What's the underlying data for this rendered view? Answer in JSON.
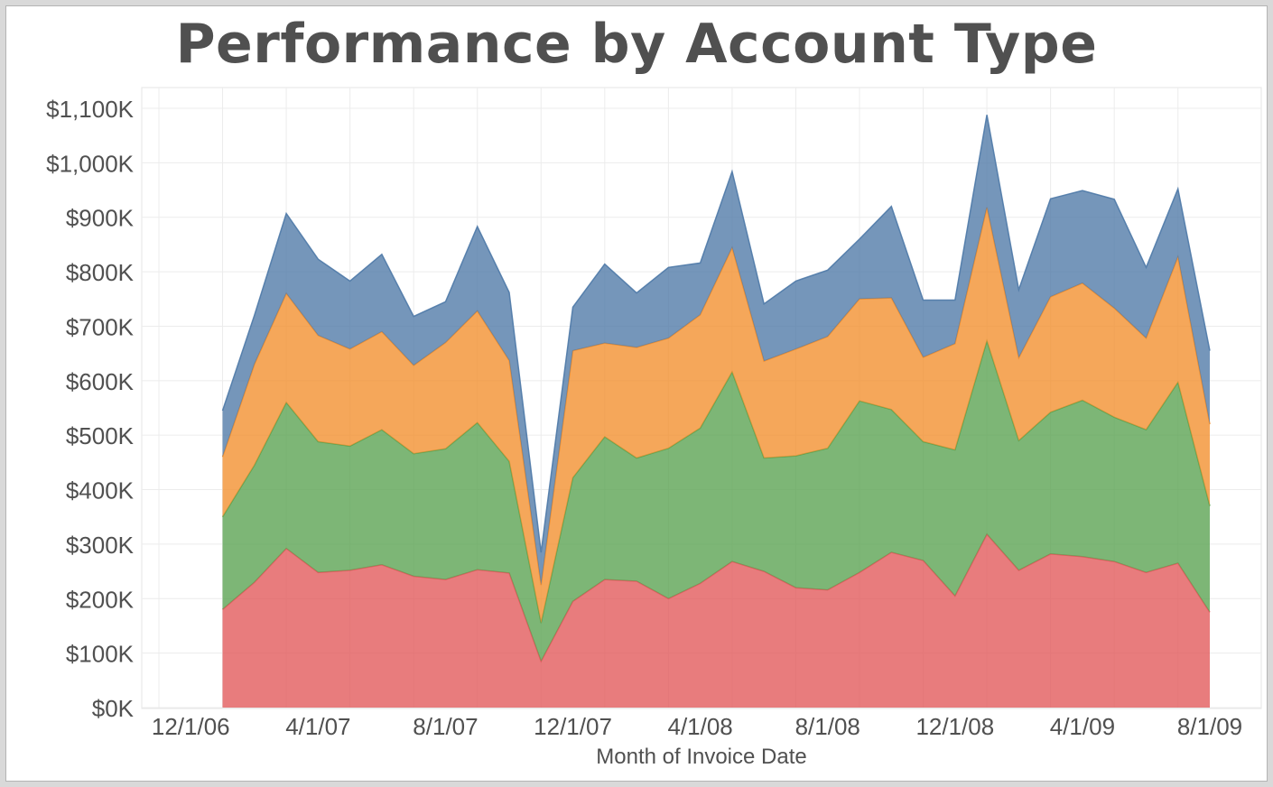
{
  "chart_data": {
    "type": "area",
    "stacked": true,
    "title": "Performance by Account Type",
    "xlabel": "Month of Invoice Date",
    "ylabel": "",
    "ylim": [
      0,
      1100000
    ],
    "y_ticks": [
      0,
      100000,
      200000,
      300000,
      400000,
      500000,
      600000,
      700000,
      800000,
      900000,
      1000000,
      1100000
    ],
    "y_tick_labels": [
      "$0K",
      "$100K",
      "$200K",
      "$300K",
      "$400K",
      "$500K",
      "$600K",
      "$700K",
      "$800K",
      "$900K",
      "$1,000K",
      "$1,100K"
    ],
    "x_tick_labels": [
      "12/1/06",
      "4/1/07",
      "8/1/07",
      "12/1/07",
      "4/1/08",
      "8/1/08",
      "12/1/08",
      "4/1/09",
      "8/1/09"
    ],
    "x_range": [
      "2006-11",
      "2009-08"
    ],
    "grid": true,
    "legend": "none",
    "categories": [
      "2007-01",
      "2007-02",
      "2007-03",
      "2007-04",
      "2007-05",
      "2007-06",
      "2007-07",
      "2007-08",
      "2007-09",
      "2007-10",
      "2007-11",
      "2007-12",
      "2008-01",
      "2008-02",
      "2008-03",
      "2008-04",
      "2008-05",
      "2008-06",
      "2008-07",
      "2008-08",
      "2008-09",
      "2008-10",
      "2008-11",
      "2008-12",
      "2009-01",
      "2009-02",
      "2009-03",
      "2009-04",
      "2009-05",
      "2009-06",
      "2009-07",
      "2009-08"
    ],
    "series": [
      {
        "color": "#e15759",
        "values": [
          180000,
          230000,
          292000,
          248000,
          252000,
          262000,
          241000,
          235000,
          253000,
          247000,
          85000,
          195000,
          235000,
          232000,
          200000,
          228000,
          268000,
          250000,
          220000,
          216000,
          248000,
          285000,
          270000,
          205000,
          318000,
          252000,
          282000,
          277000,
          268000,
          248000,
          265000,
          175000
        ]
      },
      {
        "color": "#59a14f",
        "values": [
          170000,
          215000,
          268000,
          240000,
          228000,
          248000,
          225000,
          240000,
          270000,
          205000,
          70000,
          227000,
          262000,
          226000,
          276000,
          285000,
          348000,
          208000,
          242000,
          260000,
          315000,
          262000,
          218000,
          268000,
          355000,
          238000,
          260000,
          287000,
          265000,
          262000,
          332000,
          195000
        ]
      },
      {
        "color": "#f28e2b",
        "values": [
          110000,
          185000,
          200000,
          195000,
          178000,
          180000,
          162000,
          195000,
          205000,
          185000,
          70000,
          233000,
          172000,
          203000,
          202000,
          208000,
          228000,
          178000,
          196000,
          205000,
          187000,
          205000,
          155000,
          195000,
          245000,
          152000,
          212000,
          215000,
          200000,
          168000,
          230000,
          150000
        ]
      },
      {
        "color": "#4e79a7",
        "values": [
          85000,
          90000,
          147000,
          140000,
          125000,
          142000,
          90000,
          75000,
          155000,
          125000,
          60000,
          80000,
          145000,
          100000,
          130000,
          95000,
          140000,
          105000,
          125000,
          122000,
          110000,
          168000,
          105000,
          80000,
          170000,
          125000,
          180000,
          170000,
          200000,
          130000,
          125000,
          135000
        ]
      }
    ]
  }
}
